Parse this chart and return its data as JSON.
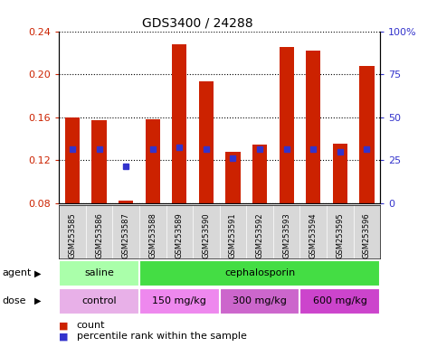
{
  "title": "GDS3400 / 24288",
  "samples": [
    "GSM253585",
    "GSM253586",
    "GSM253587",
    "GSM253588",
    "GSM253589",
    "GSM253590",
    "GSM253591",
    "GSM253592",
    "GSM253593",
    "GSM253594",
    "GSM253595",
    "GSM253596"
  ],
  "bar_values": [
    0.16,
    0.157,
    0.082,
    0.158,
    0.228,
    0.193,
    0.128,
    0.134,
    0.225,
    0.222,
    0.135,
    0.208
  ],
  "blue_dot_values": [
    0.13,
    0.13,
    0.114,
    0.13,
    0.132,
    0.13,
    0.122,
    0.13,
    0.13,
    0.13,
    0.128,
    0.13
  ],
  "bar_color": "#cc2200",
  "blue_color": "#3333cc",
  "ylim_left": [
    0.08,
    0.24
  ],
  "yticks_left": [
    0.08,
    0.12,
    0.16,
    0.2,
    0.24
  ],
  "ylim_right": [
    0,
    100
  ],
  "yticks_right": [
    0,
    25,
    50,
    75,
    100
  ],
  "yticklabels_right": [
    "0",
    "25",
    "50",
    "75",
    "100%"
  ],
  "agent_groups": [
    {
      "label": "saline",
      "start": 0,
      "end": 3,
      "color": "#aaffaa"
    },
    {
      "label": "cephalosporin",
      "start": 3,
      "end": 12,
      "color": "#44dd44"
    }
  ],
  "dose_groups": [
    {
      "label": "control",
      "start": 0,
      "end": 3,
      "color": "#e8b0e8"
    },
    {
      "label": "150 mg/kg",
      "start": 3,
      "end": 6,
      "color": "#ee88ee"
    },
    {
      "label": "300 mg/kg",
      "start": 6,
      "end": 9,
      "color": "#cc66cc"
    },
    {
      "label": "600 mg/kg",
      "start": 9,
      "end": 12,
      "color": "#cc44cc"
    }
  ],
  "legend_count_color": "#cc2200",
  "legend_blue_color": "#3333cc",
  "tick_label_color_left": "#cc2200",
  "tick_label_color_right": "#3333cc",
  "bar_width": 0.55,
  "agent_row_label": "agent",
  "dose_row_label": "dose"
}
